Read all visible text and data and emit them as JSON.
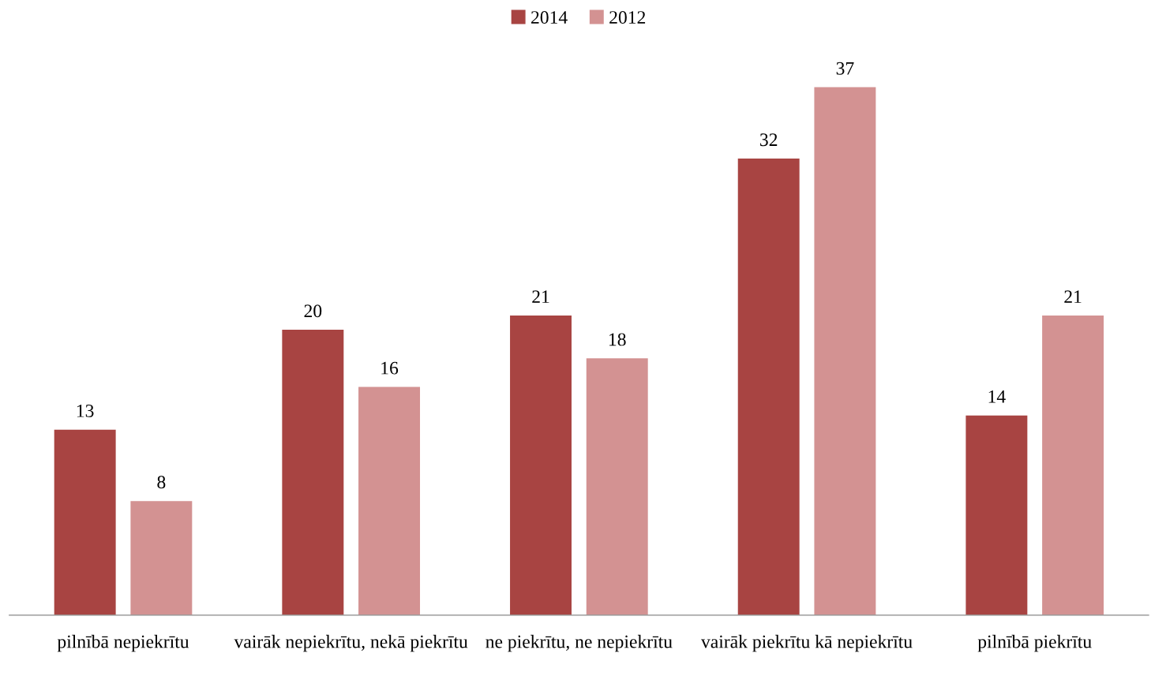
{
  "chart_data": {
    "type": "bar",
    "categories": [
      "pilnībā nepiekrītu",
      "vairāk nepiekrītu, nekā piekrītu",
      "ne piekrītu, ne nepiekrītu",
      "vairāk piekrītu kā nepiekrītu",
      "pilnībā piekrītu"
    ],
    "series": [
      {
        "name": "2014",
        "color": "#a84442",
        "values": [
          13,
          20,
          21,
          32,
          14
        ]
      },
      {
        "name": "2012",
        "color": "#d39292",
        "values": [
          8,
          16,
          18,
          37,
          21
        ]
      }
    ],
    "data_labels": true,
    "legend": "top",
    "grid": false,
    "tick_labels": "x"
  }
}
